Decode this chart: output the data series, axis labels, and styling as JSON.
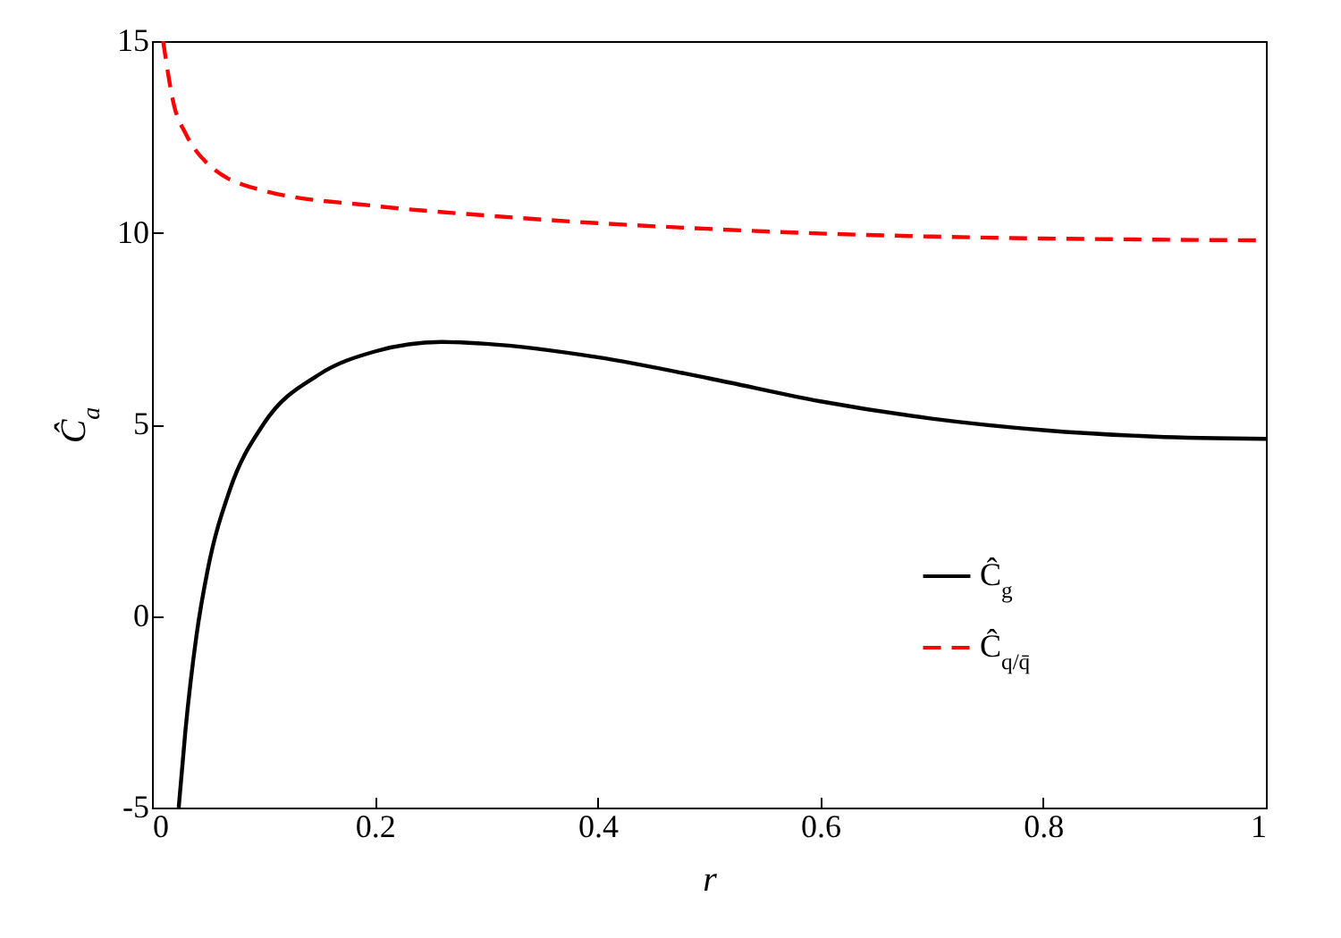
{
  "chart_data": {
    "type": "line",
    "xlabel": "r",
    "ylabel": "Ĉ$_{a}$",
    "xlim": [
      0,
      1
    ],
    "ylim": [
      -5,
      15
    ],
    "xticks": [
      0,
      0.2,
      0.4,
      0.6,
      0.8,
      1
    ],
    "yticks": [
      -5,
      0,
      5,
      10,
      15
    ],
    "legend": "bottom right",
    "grid": false,
    "series": [
      {
        "name": "Ĉ$_{g}$",
        "color": "#000000",
        "line_style": "solid",
        "x": [
          0.024,
          0.03,
          0.04,
          0.05,
          0.07,
          0.1,
          0.15,
          0.2,
          0.26,
          0.3,
          0.4,
          0.5,
          0.6,
          0.7,
          0.8,
          0.9,
          1.0
        ],
        "values": [
          -5,
          -3,
          -0.5,
          1.2,
          3.3,
          5.0,
          6.3,
          6.9,
          7.15,
          7.1,
          6.75,
          6.2,
          5.6,
          5.15,
          4.85,
          4.68,
          4.62
        ]
      },
      {
        "name": "Ĉ$_{q/q̄}$",
        "color": "#ff0000",
        "line_style": "dashed",
        "x": [
          0.01,
          0.02,
          0.03,
          0.05,
          0.1,
          0.2,
          0.3,
          0.4,
          0.5,
          0.6,
          0.7,
          0.8,
          0.9,
          1.0
        ],
        "values": [
          15,
          13.3,
          12.6,
          11.8,
          11.1,
          10.7,
          10.45,
          10.25,
          10.1,
          9.98,
          9.9,
          9.85,
          9.82,
          9.8
        ]
      }
    ]
  }
}
